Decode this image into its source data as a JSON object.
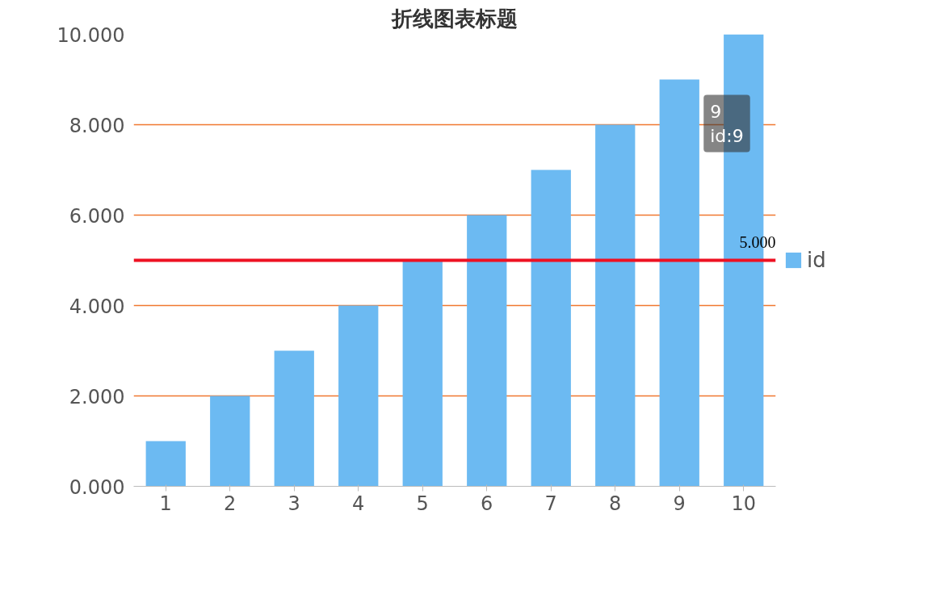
{
  "chart_data": {
    "type": "bar",
    "title": "折线图表标题",
    "categories": [
      "1",
      "2",
      "3",
      "4",
      "5",
      "6",
      "7",
      "8",
      "9",
      "10"
    ],
    "series": [
      {
        "name": "id",
        "color": "#6cbaf2",
        "values": [
          1,
          2,
          3,
          4,
          5,
          6,
          7,
          8,
          9,
          10
        ]
      }
    ],
    "ylim": [
      0,
      10
    ],
    "yticks": [
      {
        "value": 0,
        "label": "0.000"
      },
      {
        "value": 2,
        "label": "2.000"
      },
      {
        "value": 4,
        "label": "4.000"
      },
      {
        "value": 6,
        "label": "6.000"
      },
      {
        "value": 8,
        "label": "8.000"
      },
      {
        "value": 10,
        "label": "10.000"
      }
    ],
    "grid": "y",
    "legend": "right",
    "ref_lines": [
      {
        "axis": "y",
        "value": 5,
        "label": "5.000",
        "color": "#ee1122"
      }
    ],
    "annotations": [
      {
        "text": "9\nid:9",
        "x": "9",
        "y": 9
      }
    ]
  }
}
